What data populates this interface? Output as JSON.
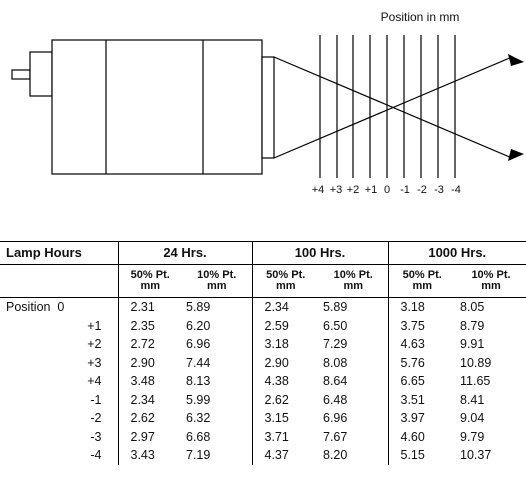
{
  "diagram": {
    "label": "Position in mm",
    "positions": [
      "+4",
      "+3",
      "+2",
      "+1",
      "0",
      "-1",
      "-2",
      "-3",
      "-4"
    ]
  },
  "table": {
    "corner": "Lamp Hours",
    "groups": [
      "24 Hrs.",
      "100 Hrs.",
      "1000 Hrs."
    ],
    "sub": {
      "p50": "50% Pt.",
      "p10": "10% Pt.",
      "unit": "mm"
    },
    "rows": [
      {
        "pos": "Position  0",
        "v": [
          "2.31",
          "5.89",
          "2.34",
          "5.89",
          "3.18",
          "8.05"
        ]
      },
      {
        "pos": "+1",
        "v": [
          "2.35",
          "6.20",
          "2.59",
          "6.50",
          "3.75",
          "8.79"
        ]
      },
      {
        "pos": "+2",
        "v": [
          "2.72",
          "6.96",
          "3.18",
          "7.29",
          "4.63",
          "9.91"
        ]
      },
      {
        "pos": "+3",
        "v": [
          "2.90",
          "7.44",
          "2.90",
          "8.08",
          "5.76",
          "10.89"
        ]
      },
      {
        "pos": "+4",
        "v": [
          "3.48",
          "8.13",
          "4.38",
          "8.64",
          "6.65",
          "11.65"
        ]
      },
      {
        "pos": "-1",
        "v": [
          "2.34",
          "5.99",
          "2.62",
          "6.48",
          "3.51",
          "8.41"
        ]
      },
      {
        "pos": "-2",
        "v": [
          "2.62",
          "6.32",
          "3.15",
          "6.96",
          "3.97",
          "9.04"
        ]
      },
      {
        "pos": "-3",
        "v": [
          "2.97",
          "6.68",
          "3.71",
          "7.67",
          "4.60",
          "9.79"
        ]
      },
      {
        "pos": "-4",
        "v": [
          "3.43",
          "7.19",
          "4.37",
          "8.20",
          "5.15",
          "10.37"
        ]
      }
    ]
  }
}
